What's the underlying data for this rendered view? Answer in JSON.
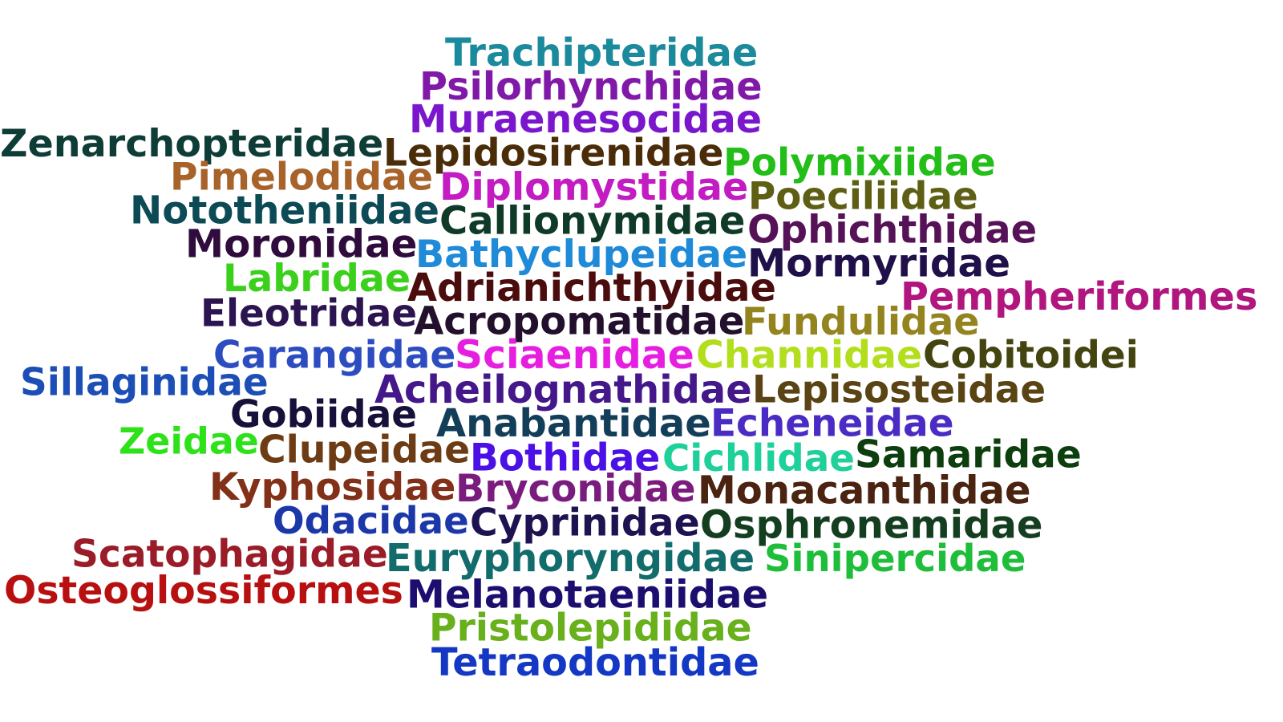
{
  "words": [
    {
      "text": "Trachipteridae",
      "color": "#1b8a9c"
    },
    {
      "text": "Psilorhynchidae",
      "color": "#8119a8"
    },
    {
      "text": "Muraenesocidae",
      "color": "#7a16cc"
    },
    {
      "text": "Zenarchopteridae",
      "color": "#0e3c36"
    },
    {
      "text": "Lepidosirenidae",
      "color": "#4a2c08"
    },
    {
      "text": "Polymixiidae",
      "color": "#23bf18"
    },
    {
      "text": "Pimelodidae",
      "color": "#a8632a"
    },
    {
      "text": "Diplomystidae",
      "color": "#c31cc2"
    },
    {
      "text": "Poeciliidae",
      "color": "#5e5e14"
    },
    {
      "text": "Nototheniidae",
      "color": "#0c4a56"
    },
    {
      "text": "Callionymidae",
      "color": "#0f3a28"
    },
    {
      "text": "Ophichthidae",
      "color": "#561256"
    },
    {
      "text": "Moronidae",
      "color": "#2f0c3c"
    },
    {
      "text": "Bathyclupeidae",
      "color": "#1f8ad8"
    },
    {
      "text": "Mormyridae",
      "color": "#20104a"
    },
    {
      "text": "Labridae",
      "color": "#3ad01c"
    },
    {
      "text": "Adrianichthyidae",
      "color": "#4a0c0c"
    },
    {
      "text": "Pempheriformes",
      "color": "#b0167e"
    },
    {
      "text": "Eleotridae",
      "color": "#2c1450"
    },
    {
      "text": "Acropomatidae",
      "color": "#22102c"
    },
    {
      "text": "Fundulidae",
      "color": "#948420"
    },
    {
      "text": "Carangidae",
      "color": "#2c4cc0"
    },
    {
      "text": "Sciaenidae",
      "color": "#e61ee0"
    },
    {
      "text": "Channidae",
      "color": "#b2de1c"
    },
    {
      "text": "Cobitoidei",
      "color": "#444410"
    },
    {
      "text": "Sillaginidae",
      "color": "#1c4eb6"
    },
    {
      "text": "Acheilognathidae",
      "color": "#44188a"
    },
    {
      "text": "Lepisosteidae",
      "color": "#5a4414"
    },
    {
      "text": "Gobiidae",
      "color": "#16103a"
    },
    {
      "text": "Anabantidae",
      "color": "#123e5a"
    },
    {
      "text": "Echeneidae",
      "color": "#4a2cc4"
    },
    {
      "text": "Zeidae",
      "color": "#2ee21a"
    },
    {
      "text": "Clupeidae",
      "color": "#6e3c14"
    },
    {
      "text": "Bothidae",
      "color": "#4a10e6"
    },
    {
      "text": "Cichlidae",
      "color": "#1ed09a"
    },
    {
      "text": "Samaridae",
      "color": "#0c3e0e"
    },
    {
      "text": "Kyphosidae",
      "color": "#823018"
    },
    {
      "text": "Bryconidae",
      "color": "#7a1c7e"
    },
    {
      "text": "Monacanthidae",
      "color": "#4a2410"
    },
    {
      "text": "Odacidae",
      "color": "#1c38a8"
    },
    {
      "text": "Cyprinidae",
      "color": "#1e1250"
    },
    {
      "text": "Osphronemidae",
      "color": "#143e20"
    },
    {
      "text": "Scatophagidae",
      "color": "#9a1c28"
    },
    {
      "text": "Euryphoryngidae",
      "color": "#136c6c"
    },
    {
      "text": "Sinipercidae",
      "color": "#1ebe3a"
    },
    {
      "text": "Osteoglossiformes",
      "color": "#b81010"
    },
    {
      "text": "Melanotaeniidae",
      "color": "#1c0e6e"
    },
    {
      "text": "Pristolepididae",
      "color": "#68b01c"
    },
    {
      "text": "Tetraodontidae",
      "color": "#1438c4"
    }
  ]
}
